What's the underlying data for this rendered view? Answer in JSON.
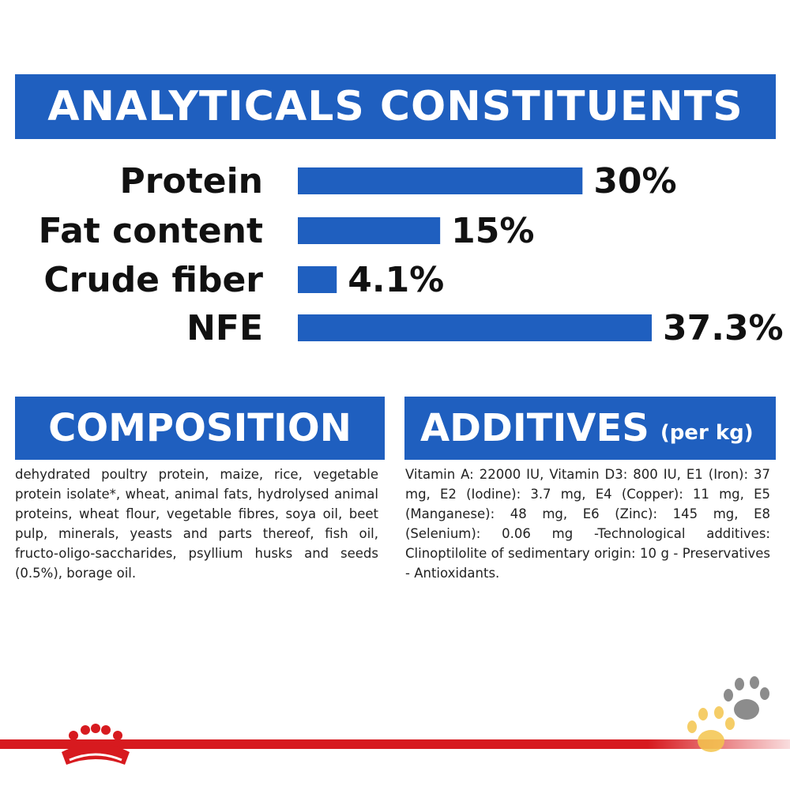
{
  "headers": {
    "analytics": "ANALYTICALS CONSTITUENTS",
    "composition": "COMPOSITION",
    "additives": "ADDITIVES",
    "additives_unit": "(per kg)"
  },
  "chart_data": {
    "type": "bar",
    "orientation": "horizontal",
    "categories": [
      "Protein",
      "Fat content",
      "Crude fiber",
      "NFE"
    ],
    "values": [
      30,
      15,
      4.1,
      37.3
    ],
    "value_labels": [
      "30%",
      "15%",
      "4.1%",
      "37.3%"
    ],
    "title": "ANALYTICALS CONSTITUENTS",
    "xlabel": "",
    "ylabel": "",
    "xlim": [
      0,
      37.3
    ],
    "grid": false,
    "colors": {
      "bar": "#1f5fbf"
    }
  },
  "composition_text": "dehydrated poultry protein, maize, rice, vegetable protein isolate*, wheat, animal fats, hydrolysed animal proteins, wheat flour, vegetable fibres, soya oil, beet pulp, minerals, yeasts and parts thereof, fish oil, fructo-oligo-saccharides, psyllium husks and seeds (0.5%), borage oil.",
  "additives_text": "Vitamin A: 22000 IU, Vitamin D3: 800 IU, E1 (Iron): 37 mg, E2 (Iodine): 3.7 mg, E4 (Copper): 11 mg, E5 (Manganese): 48 mg, E6 (Zinc): 145 mg, E8 (Selenium): 0.06 mg -Technological additives: Clinoptilolite of sedimentary origin: 10 g - Preservatives - Antioxidants.",
  "icons": {
    "logo": "royal-canin-crown-logo",
    "decoration": "cat-paw-prints-icon"
  },
  "colors": {
    "primary_blue": "#1f5fbf",
    "brand_red": "#d71a1f",
    "paw_gray": "#8c8c8c",
    "paw_yellow": "#f4c54d"
  }
}
